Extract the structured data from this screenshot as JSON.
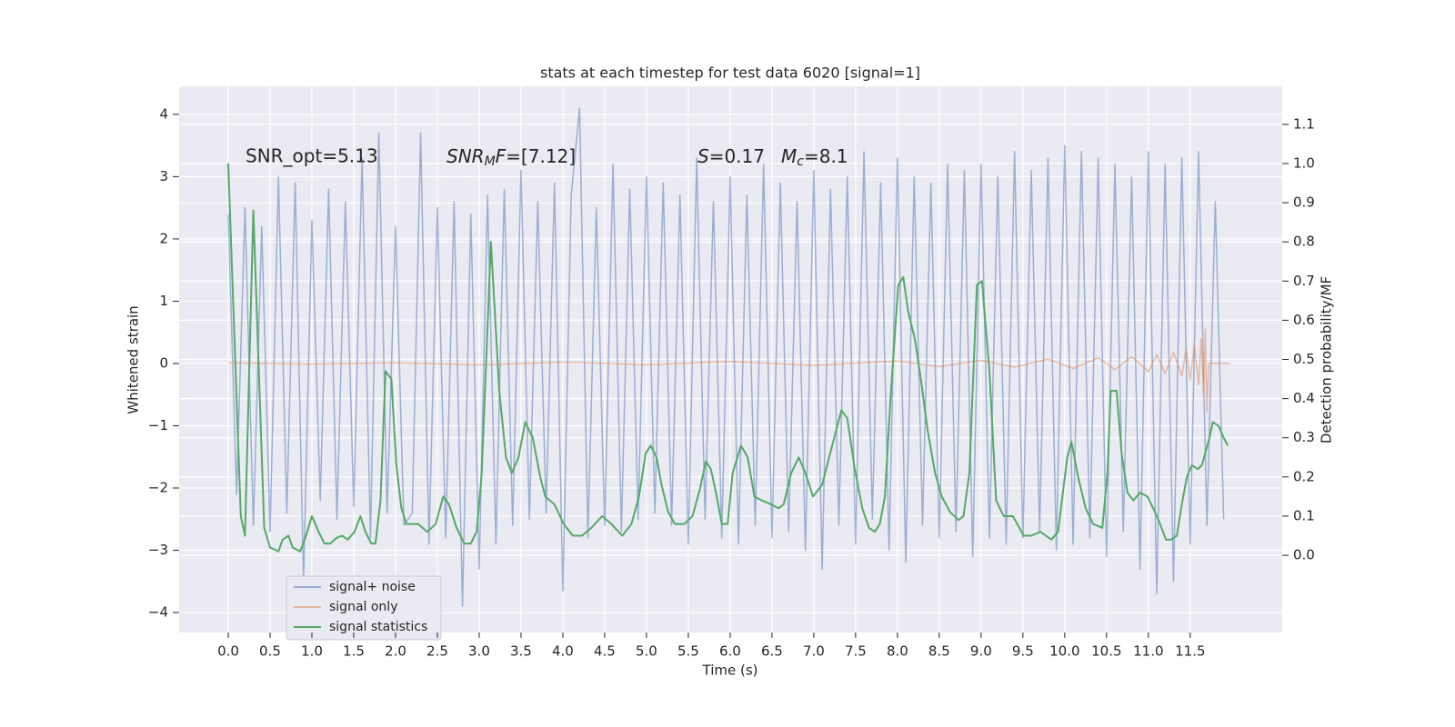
{
  "chart_data": {
    "type": "line",
    "title": "stats at each timestep for test data 6020 [signal=1]",
    "xlabel": "Time (s)",
    "ylabel": "Whitened strain",
    "y2label": "Detection probability/MF",
    "annotations": [
      [
        "SNR_opt=5.13"
      ],
      [
        "SNR",
        "M",
        "F",
        "=[7.12]"
      ],
      [
        "S",
        "=0.17"
      ],
      [
        "M",
        "c",
        "=8.1"
      ]
    ],
    "xlim": [
      -0.587,
      12.6
    ],
    "ylim": [
      -4.32,
      4.45
    ],
    "y2lim": [
      -0.197,
      1.197
    ],
    "xticks": [
      {
        "value": 0,
        "label": "0.0"
      },
      0.5,
      {
        "value": 1,
        "label": "1.0"
      },
      1.5,
      {
        "value": 2,
        "label": "2.0"
      },
      2.5,
      {
        "value": 3,
        "label": "3.0"
      },
      3.5,
      {
        "value": 4,
        "label": "4.0"
      },
      4.5,
      {
        "value": 5,
        "label": "5.0"
      },
      5.5,
      {
        "value": 6,
        "label": "6.0"
      },
      6.5,
      {
        "value": 7,
        "label": "7.0"
      },
      7.5,
      {
        "value": 8,
        "label": "8.0"
      },
      8.5,
      {
        "value": 9,
        "label": "9.0"
      },
      9.5,
      {
        "value": 10,
        "label": "10.0"
      },
      10.5,
      {
        "value": 11,
        "label": "11.0"
      },
      11.5
    ],
    "yticks": [
      {
        "value": -4,
        "label": "−4"
      },
      {
        "value": -3,
        "label": "−3"
      },
      {
        "value": -2,
        "label": "−2"
      },
      {
        "value": -1,
        "label": "−1"
      },
      0,
      1,
      2,
      3,
      4
    ],
    "y2ticks": [
      {
        "value": 0,
        "label": "0.0"
      },
      0.1,
      0.2,
      0.3,
      0.4,
      0.5,
      0.6,
      0.7,
      0.8,
      0.9,
      {
        "value": 1,
        "label": "1.0"
      },
      1.1
    ],
    "grid": true,
    "legend": "lower left",
    "alpha": 0.5,
    "series": [
      {
        "name": "signal+ noise",
        "color": "#4c72b0",
        "x": [
          0.0,
          0.1,
          0.2,
          0.3,
          0.4,
          0.5,
          0.6,
          0.7,
          0.8,
          0.9,
          1.0,
          1.1,
          1.2,
          1.3,
          1.4,
          1.5,
          1.6,
          1.7,
          1.8,
          1.9,
          2.0,
          2.1,
          2.2,
          2.3,
          2.4,
          2.5,
          2.6,
          2.7,
          2.8,
          2.9,
          3.0,
          3.1,
          3.2,
          3.3,
          3.4,
          3.5,
          3.6,
          3.7,
          3.8,
          3.9,
          4.0,
          4.1,
          4.2,
          4.3,
          4.4,
          4.5,
          4.6,
          4.7,
          4.8,
          4.9,
          5.0,
          5.1,
          5.2,
          5.3,
          5.4,
          5.5,
          5.6,
          5.7,
          5.8,
          5.9,
          6.0,
          6.1,
          6.2,
          6.3,
          6.4,
          6.5,
          6.6,
          6.7,
          6.8,
          6.9,
          7.0,
          7.1,
          7.2,
          7.3,
          7.4,
          7.5,
          7.6,
          7.7,
          7.8,
          7.9,
          8.0,
          8.1,
          8.2,
          8.3,
          8.4,
          8.5,
          8.6,
          8.7,
          8.8,
          8.9,
          9.0,
          9.1,
          9.2,
          9.3,
          9.4,
          9.5,
          9.6,
          9.7,
          9.8,
          9.9,
          10.0,
          10.1,
          10.2,
          10.3,
          10.4,
          10.5,
          10.6,
          10.7,
          10.8,
          10.9,
          11.0,
          11.1,
          11.2,
          11.3,
          11.4,
          11.5,
          11.6,
          11.7,
          11.8,
          11.9
        ],
        "values": [
          2.4,
          -2.1,
          2.5,
          -2.6,
          2.2,
          -2.7,
          3.0,
          -2.4,
          2.9,
          -3.5,
          2.3,
          -2.2,
          2.8,
          -2.5,
          2.6,
          -2.3,
          3.3,
          -2.8,
          3.7,
          -2.4,
          2.2,
          -2.6,
          -2.4,
          3.7,
          -2.9,
          2.5,
          -2.8,
          2.6,
          -3.9,
          2.4,
          -3.3,
          2.7,
          -2.9,
          2.8,
          -2.6,
          3.1,
          -2.5,
          2.6,
          -2.4,
          2.9,
          -3.65,
          2.7,
          4.1,
          -2.8,
          2.5,
          -2.6,
          3.2,
          -2.7,
          2.8,
          -2.5,
          3.0,
          -2.4,
          2.9,
          -2.6,
          2.7,
          -2.9,
          3.3,
          -2.5,
          2.6,
          -2.8,
          3.0,
          -2.9,
          2.7,
          -2.6,
          3.2,
          -2.8,
          2.9,
          -2.7,
          2.6,
          -3.0,
          3.1,
          -3.3,
          2.8,
          -2.6,
          3.0,
          -2.9,
          3.4,
          -2.5,
          2.9,
          -3.0,
          3.3,
          -3.2,
          3.0,
          -2.6,
          2.9,
          -2.8,
          3.2,
          -2.7,
          3.1,
          -3.1,
          3.2,
          -2.8,
          3.0,
          -2.9,
          3.4,
          -2.8,
          3.1,
          -2.7,
          3.3,
          -3.0,
          3.5,
          -2.9,
          3.4,
          -2.8,
          3.3,
          -3.1,
          3.2,
          -2.7,
          3.0,
          -3.3,
          3.4,
          -3.7,
          3.2,
          -3.5,
          3.3,
          -2.9,
          3.4,
          -2.6,
          2.6,
          -2.5
        ]
      },
      {
        "name": "signal only",
        "color": "#dd8452",
        "x": [
          0,
          1,
          2,
          3,
          4,
          5,
          6,
          7,
          8,
          8.5,
          9,
          9.4,
          9.8,
          10.1,
          10.4,
          10.6,
          10.8,
          11.0,
          11.1,
          11.2,
          11.3,
          11.4,
          11.45,
          11.5,
          11.55,
          11.6,
          11.63,
          11.66,
          11.68,
          11.7,
          11.72,
          11.98
        ],
        "values": [
          0.01,
          -0.01,
          0.01,
          -0.02,
          0.02,
          -0.02,
          0.03,
          -0.03,
          0.04,
          -0.05,
          0.05,
          -0.06,
          0.07,
          -0.08,
          0.09,
          -0.1,
          0.11,
          -0.13,
          0.14,
          -0.16,
          0.18,
          -0.2,
          0.23,
          -0.26,
          0.3,
          -0.34,
          0.4,
          -0.48,
          0.56,
          -0.78,
          0.0,
          0.0
        ]
      },
      {
        "name": "signal statistics",
        "color": "#55a868",
        "axis": "y2",
        "x": [
          0,
          0.15,
          0.2,
          0.3,
          0.43,
          0.5,
          0.6,
          0.65,
          0.72,
          0.77,
          0.86,
          0.93,
          1.0,
          1.08,
          1.15,
          1.22,
          1.3,
          1.36,
          1.43,
          1.51,
          1.58,
          1.64,
          1.71,
          1.76,
          1.82,
          1.88,
          1.95,
          2.01,
          2.07,
          2.13,
          2.27,
          2.38,
          2.48,
          2.57,
          2.64,
          2.73,
          2.82,
          2.9,
          2.97,
          3.03,
          3.14,
          3.24,
          3.32,
          3.39,
          3.47,
          3.55,
          3.64,
          3.73,
          3.79,
          3.9,
          4.01,
          4.12,
          4.23,
          4.34,
          4.47,
          4.58,
          4.71,
          4.82,
          4.91,
          4.99,
          5.05,
          5.12,
          5.18,
          5.26,
          5.34,
          5.45,
          5.55,
          5.64,
          5.71,
          5.77,
          5.84,
          5.9,
          5.97,
          6.03,
          6.13,
          6.21,
          6.29,
          6.38,
          6.49,
          6.58,
          6.64,
          6.73,
          6.82,
          6.9,
          6.99,
          7.1,
          7.22,
          7.33,
          7.4,
          7.49,
          7.58,
          7.66,
          7.73,
          7.79,
          7.85,
          7.92,
          8.01,
          8.07,
          8.13,
          8.21,
          8.28,
          8.36,
          8.45,
          8.53,
          8.63,
          8.73,
          8.79,
          8.86,
          8.95,
          9.01,
          9.1,
          9.18,
          9.27,
          9.38,
          9.51,
          9.6,
          9.71,
          9.84,
          9.92,
          10.03,
          10.08,
          10.16,
          10.25,
          10.34,
          10.45,
          10.51,
          10.55,
          10.62,
          10.68,
          10.75,
          10.82,
          10.9,
          10.99,
          11.08,
          11.14,
          11.21,
          11.27,
          11.34,
          11.4,
          11.46,
          11.52,
          11.59,
          11.64,
          11.73,
          11.77,
          11.84,
          11.9,
          11.95
        ],
        "values": [
          1.0,
          0.1,
          0.05,
          0.88,
          0.07,
          0.02,
          0.01,
          0.04,
          0.05,
          0.02,
          0.01,
          0.05,
          0.1,
          0.06,
          0.03,
          0.03,
          0.045,
          0.05,
          0.04,
          0.06,
          0.1,
          0.06,
          0.03,
          0.03,
          0.14,
          0.47,
          0.45,
          0.23,
          0.12,
          0.08,
          0.08,
          0.06,
          0.08,
          0.15,
          0.13,
          0.07,
          0.03,
          0.03,
          0.06,
          0.21,
          0.8,
          0.42,
          0.25,
          0.21,
          0.25,
          0.34,
          0.3,
          0.2,
          0.15,
          0.13,
          0.08,
          0.05,
          0.05,
          0.07,
          0.1,
          0.08,
          0.05,
          0.08,
          0.15,
          0.26,
          0.28,
          0.25,
          0.18,
          0.11,
          0.08,
          0.08,
          0.1,
          0.17,
          0.24,
          0.22,
          0.15,
          0.08,
          0.08,
          0.21,
          0.28,
          0.25,
          0.15,
          0.14,
          0.13,
          0.12,
          0.13,
          0.21,
          0.25,
          0.21,
          0.15,
          0.18,
          0.28,
          0.37,
          0.35,
          0.22,
          0.12,
          0.07,
          0.06,
          0.08,
          0.15,
          0.41,
          0.69,
          0.71,
          0.62,
          0.55,
          0.45,
          0.32,
          0.21,
          0.15,
          0.11,
          0.09,
          0.1,
          0.21,
          0.69,
          0.7,
          0.47,
          0.14,
          0.1,
          0.1,
          0.05,
          0.05,
          0.06,
          0.04,
          0.06,
          0.25,
          0.29,
          0.2,
          0.12,
          0.08,
          0.07,
          0.21,
          0.42,
          0.42,
          0.26,
          0.16,
          0.14,
          0.16,
          0.15,
          0.11,
          0.08,
          0.04,
          0.04,
          0.05,
          0.13,
          0.2,
          0.23,
          0.22,
          0.23,
          0.3,
          0.34,
          0.33,
          0.3,
          0.28
        ]
      }
    ]
  }
}
